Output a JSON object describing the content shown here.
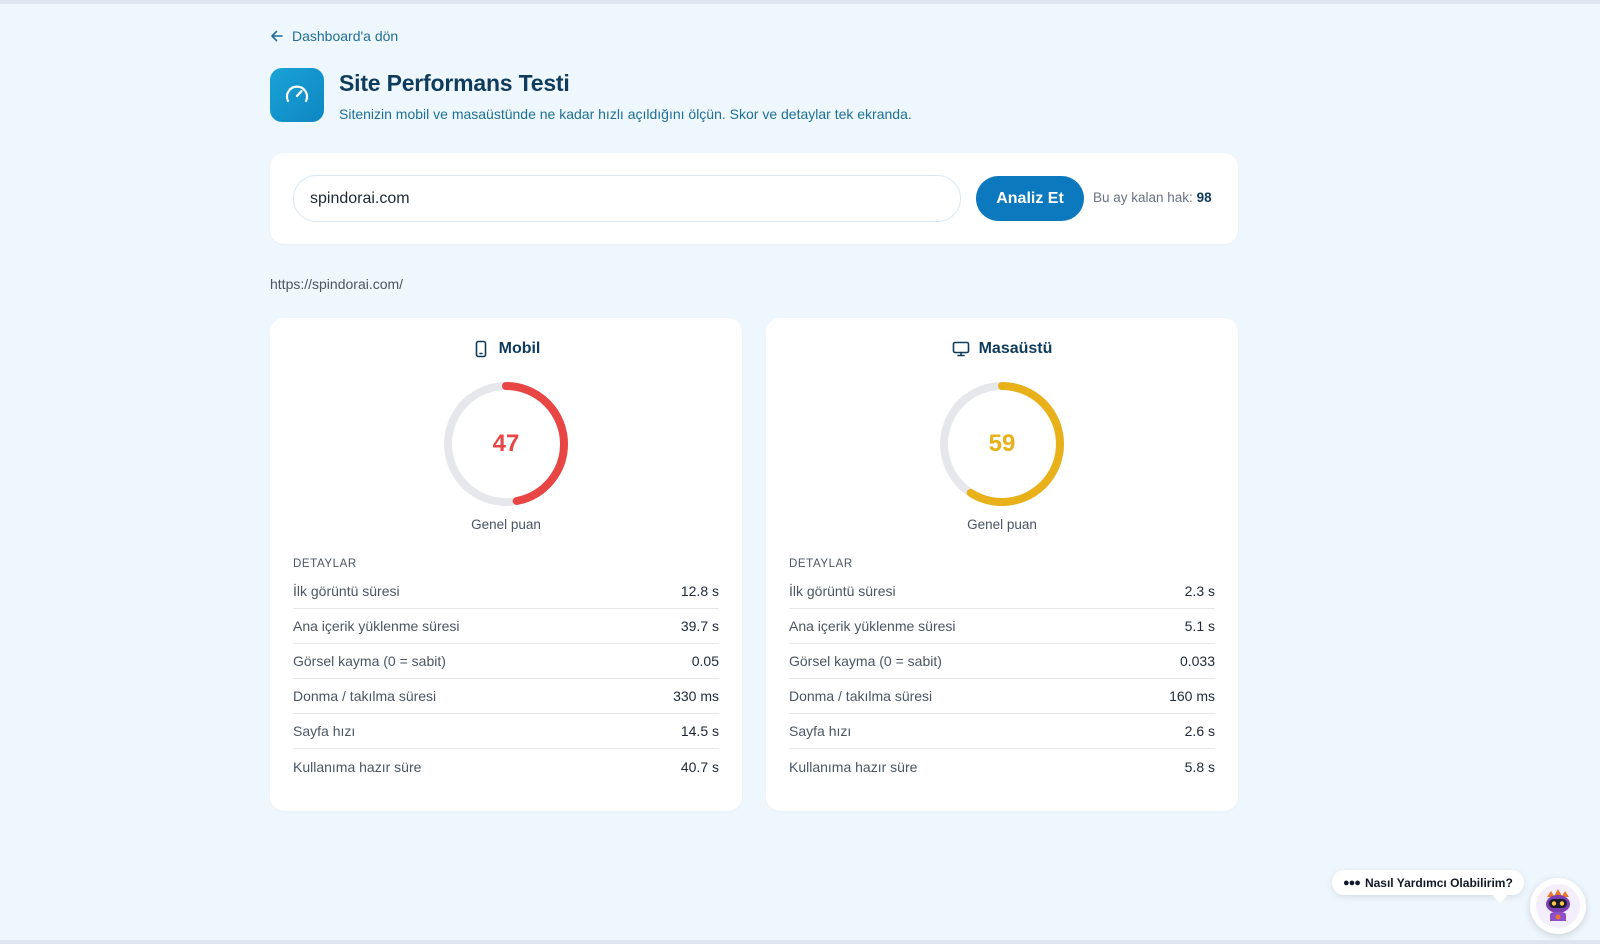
{
  "nav": {
    "back_label": "Dashboard'a dön"
  },
  "header": {
    "title": "Site Performans Testi",
    "subtitle": "Sitenizin mobil ve masaüstünde ne kadar hızlı açıldığını ölçün. Skor ve detaylar tek ekranda.",
    "icon": "speedometer-icon"
  },
  "search": {
    "value": "spindorai.com",
    "button_label": "Analiz Et",
    "quota_label": "Bu ay kalan hak:",
    "quota_value": "98"
  },
  "result_url": "https://spindorai.com/",
  "colors": {
    "accent": "#0c79bf",
    "mobile_score": "#e84545",
    "desktop_score": "#e8b019",
    "track": "#e6e7ea"
  },
  "mobile": {
    "title": "Mobil",
    "icon": "phone-icon",
    "score": 47,
    "score_label": "Genel puan",
    "details_title": "DETAYLAR",
    "rows": [
      {
        "label": "İlk görüntü süresi",
        "value": "12.8 s"
      },
      {
        "label": "Ana içerik yüklenme süresi",
        "value": "39.7 s"
      },
      {
        "label": "Görsel kayma (0 = sabit)",
        "value": "0.05"
      },
      {
        "label": "Donma / takılma süresi",
        "value": "330 ms"
      },
      {
        "label": "Sayfa hızı",
        "value": "14.5 s"
      },
      {
        "label": "Kullanıma hazır süre",
        "value": "40.7 s"
      }
    ]
  },
  "desktop": {
    "title": "Masaüstü",
    "icon": "monitor-icon",
    "score": 59,
    "score_label": "Genel puan",
    "details_title": "DETAYLAR",
    "rows": [
      {
        "label": "İlk görüntü süresi",
        "value": "2.3 s"
      },
      {
        "label": "Ana içerik yüklenme süresi",
        "value": "5.1 s"
      },
      {
        "label": "Görsel kayma (0 = sabit)",
        "value": "0.033"
      },
      {
        "label": "Donma / takılma süresi",
        "value": "160 ms"
      },
      {
        "label": "Sayfa hızı",
        "value": "2.6 s"
      },
      {
        "label": "Kullanıma hazır süre",
        "value": "5.8 s"
      }
    ]
  },
  "chat": {
    "bubble_text": "Nasıl Yardımcı Olabilirim?",
    "icon": "robot-avatar-icon"
  }
}
